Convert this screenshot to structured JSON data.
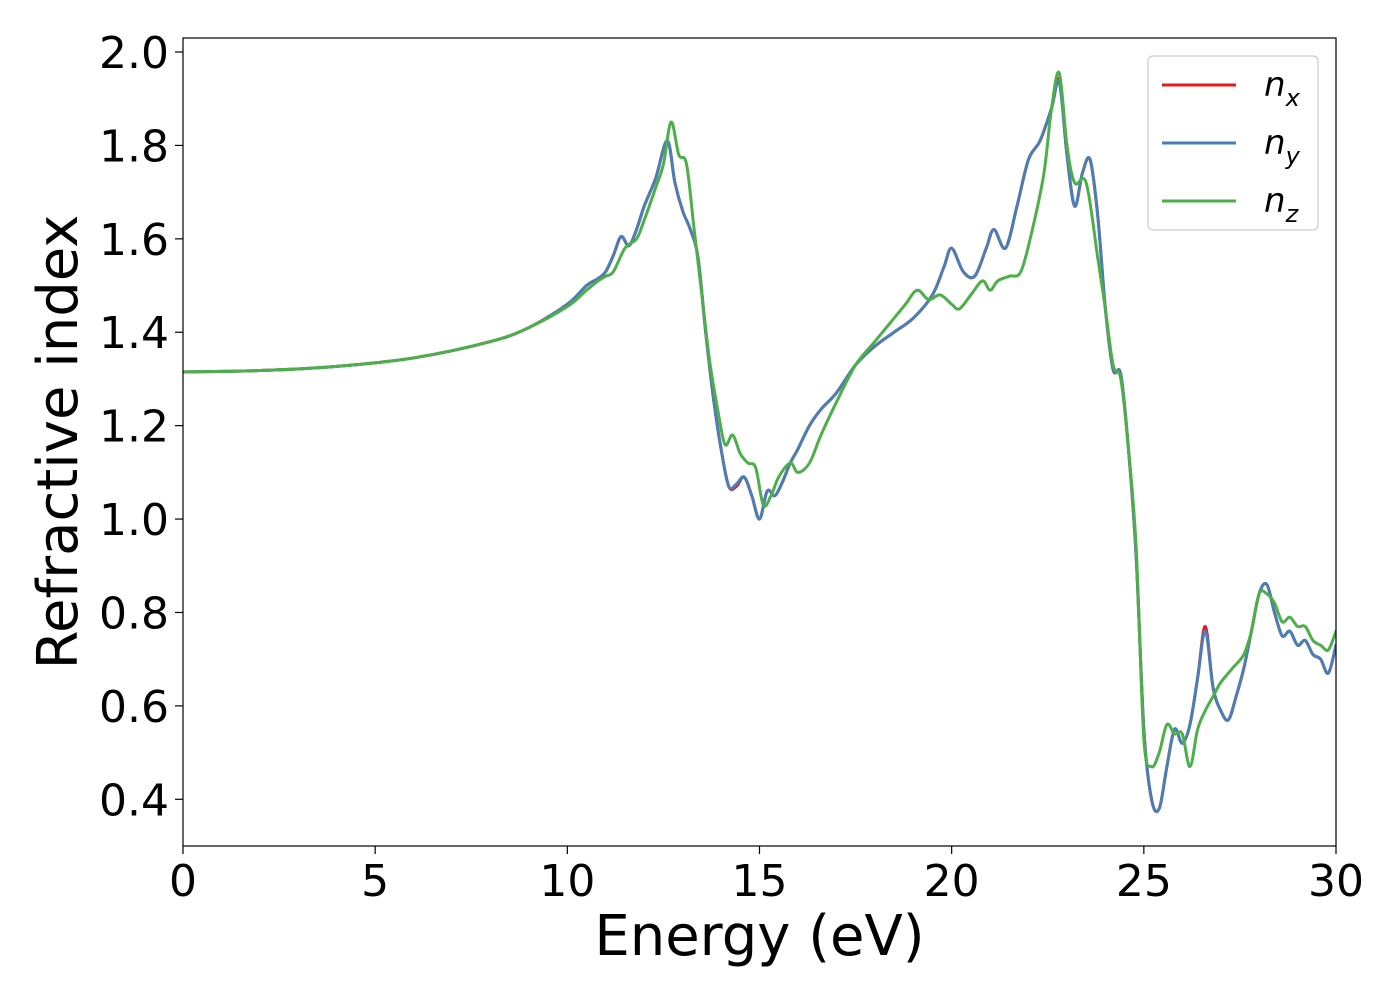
{
  "chart_data": {
    "type": "line",
    "xlabel": "Energy (eV)",
    "ylabel": "Refractive index",
    "xlim": [
      0,
      30
    ],
    "ylim": [
      0.3,
      2.03
    ],
    "x_ticks": [
      0,
      5,
      10,
      15,
      20,
      25,
      30
    ],
    "y_ticks": [
      0.4,
      0.6,
      0.8,
      1.0,
      1.2,
      1.4,
      1.6,
      1.8,
      2.0
    ],
    "y_tick_labels": [
      "0.4",
      "0.6",
      "0.8",
      "1.0",
      "1.2",
      "1.4",
      "1.6",
      "1.8",
      "2.0"
    ],
    "grid": false,
    "legend_position": "top-right",
    "series": [
      {
        "name": "n_x",
        "symbol": "n",
        "subscript": "x",
        "color": "#e41a1c",
        "x": [
          0,
          2,
          4,
          6,
          8,
          9,
          10,
          10.5,
          10.8,
          11.0,
          11.2,
          11.4,
          11.6,
          11.8,
          12.0,
          12.3,
          12.6,
          12.8,
          13.0,
          13.2,
          13.4,
          13.6,
          13.8,
          14.0,
          14.2,
          14.4,
          14.6,
          14.8,
          15.0,
          15.2,
          15.4,
          15.6,
          15.8,
          16.0,
          16.3,
          16.6,
          17.0,
          17.5,
          18.0,
          18.5,
          19.0,
          19.5,
          19.8,
          20.0,
          20.3,
          20.6,
          20.9,
          21.1,
          21.4,
          21.7,
          22.0,
          22.3,
          22.6,
          22.8,
          23.0,
          23.2,
          23.4,
          23.6,
          23.8,
          24.0,
          24.2,
          24.4,
          24.6,
          24.8,
          25.0,
          25.2,
          25.4,
          25.6,
          25.8,
          26.0,
          26.2,
          26.4,
          26.6,
          26.8,
          27.0,
          27.2,
          27.4,
          27.6,
          27.8,
          28.0,
          28.2,
          28.4,
          28.6,
          28.8,
          29.0,
          29.2,
          29.4,
          29.6,
          29.8,
          30.0
        ],
        "y": [
          1.315,
          1.318,
          1.327,
          1.345,
          1.38,
          1.41,
          1.46,
          1.5,
          1.515,
          1.53,
          1.565,
          1.605,
          1.585,
          1.62,
          1.67,
          1.73,
          1.81,
          1.72,
          1.66,
          1.62,
          1.56,
          1.4,
          1.26,
          1.15,
          1.07,
          1.07,
          1.09,
          1.05,
          1.0,
          1.06,
          1.05,
          1.08,
          1.12,
          1.15,
          1.2,
          1.235,
          1.27,
          1.33,
          1.37,
          1.4,
          1.43,
          1.48,
          1.54,
          1.58,
          1.53,
          1.52,
          1.58,
          1.62,
          1.58,
          1.67,
          1.77,
          1.81,
          1.88,
          1.94,
          1.78,
          1.67,
          1.74,
          1.77,
          1.65,
          1.45,
          1.32,
          1.31,
          1.15,
          0.92,
          0.55,
          0.4,
          0.38,
          0.47,
          0.55,
          0.52,
          0.56,
          0.66,
          0.77,
          0.64,
          0.59,
          0.57,
          0.62,
          0.68,
          0.76,
          0.84,
          0.86,
          0.8,
          0.75,
          0.76,
          0.73,
          0.74,
          0.71,
          0.7,
          0.67,
          0.73
        ]
      },
      {
        "name": "n_y",
        "symbol": "n",
        "subscript": "y",
        "color": "#4a7fb5",
        "x": [
          0,
          2,
          4,
          6,
          8,
          9,
          10,
          10.5,
          10.8,
          11.0,
          11.2,
          11.4,
          11.6,
          11.8,
          12.0,
          12.3,
          12.6,
          12.8,
          13.0,
          13.2,
          13.4,
          13.6,
          13.8,
          14.0,
          14.2,
          14.4,
          14.6,
          14.8,
          15.0,
          15.2,
          15.4,
          15.6,
          15.8,
          16.0,
          16.3,
          16.6,
          17.0,
          17.5,
          18.0,
          18.5,
          19.0,
          19.5,
          19.8,
          20.0,
          20.3,
          20.6,
          20.9,
          21.1,
          21.4,
          21.7,
          22.0,
          22.3,
          22.6,
          22.8,
          23.0,
          23.2,
          23.4,
          23.6,
          23.8,
          24.0,
          24.2,
          24.4,
          24.6,
          24.8,
          25.0,
          25.2,
          25.4,
          25.6,
          25.8,
          26.0,
          26.2,
          26.4,
          26.6,
          26.8,
          27.0,
          27.2,
          27.4,
          27.6,
          27.8,
          28.0,
          28.2,
          28.4,
          28.6,
          28.8,
          29.0,
          29.2,
          29.4,
          29.6,
          29.8,
          30.0
        ],
        "y": [
          1.315,
          1.318,
          1.327,
          1.345,
          1.38,
          1.41,
          1.46,
          1.5,
          1.515,
          1.53,
          1.565,
          1.605,
          1.585,
          1.62,
          1.67,
          1.73,
          1.81,
          1.72,
          1.66,
          1.62,
          1.56,
          1.4,
          1.26,
          1.15,
          1.07,
          1.075,
          1.09,
          1.05,
          1.0,
          1.06,
          1.05,
          1.08,
          1.12,
          1.15,
          1.2,
          1.235,
          1.27,
          1.33,
          1.37,
          1.4,
          1.43,
          1.48,
          1.54,
          1.58,
          1.53,
          1.52,
          1.58,
          1.62,
          1.58,
          1.67,
          1.77,
          1.81,
          1.88,
          1.935,
          1.78,
          1.67,
          1.74,
          1.77,
          1.65,
          1.45,
          1.32,
          1.31,
          1.15,
          0.92,
          0.55,
          0.4,
          0.38,
          0.47,
          0.55,
          0.52,
          0.56,
          0.66,
          0.76,
          0.64,
          0.59,
          0.57,
          0.62,
          0.68,
          0.76,
          0.84,
          0.86,
          0.8,
          0.75,
          0.76,
          0.73,
          0.74,
          0.71,
          0.7,
          0.67,
          0.73
        ]
      },
      {
        "name": "n_z",
        "symbol": "n",
        "subscript": "z",
        "color": "#4daf4a",
        "x": [
          0,
          2,
          4,
          6,
          8,
          9,
          10,
          10.5,
          10.8,
          11.0,
          11.2,
          11.5,
          11.8,
          12.0,
          12.3,
          12.5,
          12.7,
          12.9,
          13.1,
          13.3,
          13.5,
          13.7,
          13.9,
          14.1,
          14.3,
          14.5,
          14.7,
          14.9,
          15.1,
          15.3,
          15.5,
          15.8,
          16.0,
          16.3,
          16.6,
          17.0,
          17.5,
          18.0,
          18.5,
          18.8,
          19.1,
          19.4,
          19.7,
          20.0,
          20.2,
          20.5,
          20.8,
          21.0,
          21.2,
          21.5,
          21.8,
          22.1,
          22.4,
          22.6,
          22.8,
          23.0,
          23.2,
          23.5,
          23.8,
          24.0,
          24.2,
          24.4,
          24.6,
          24.8,
          25.0,
          25.2,
          25.4,
          25.6,
          25.8,
          26.0,
          26.2,
          26.4,
          26.6,
          26.8,
          27.0,
          27.3,
          27.6,
          27.8,
          28.0,
          28.2,
          28.4,
          28.6,
          28.8,
          29.0,
          29.2,
          29.4,
          29.6,
          29.8,
          30.0
        ],
        "y": [
          1.315,
          1.318,
          1.327,
          1.345,
          1.38,
          1.41,
          1.455,
          1.49,
          1.51,
          1.52,
          1.53,
          1.58,
          1.6,
          1.64,
          1.71,
          1.76,
          1.85,
          1.78,
          1.76,
          1.62,
          1.48,
          1.34,
          1.24,
          1.16,
          1.18,
          1.14,
          1.12,
          1.11,
          1.03,
          1.05,
          1.09,
          1.12,
          1.1,
          1.12,
          1.18,
          1.25,
          1.33,
          1.38,
          1.43,
          1.46,
          1.49,
          1.47,
          1.48,
          1.46,
          1.45,
          1.48,
          1.51,
          1.49,
          1.51,
          1.52,
          1.53,
          1.62,
          1.74,
          1.88,
          1.955,
          1.8,
          1.72,
          1.72,
          1.56,
          1.45,
          1.33,
          1.3,
          1.15,
          0.94,
          0.53,
          0.47,
          0.5,
          0.56,
          0.54,
          0.54,
          0.47,
          0.55,
          0.59,
          0.62,
          0.65,
          0.68,
          0.71,
          0.76,
          0.84,
          0.84,
          0.82,
          0.78,
          0.79,
          0.77,
          0.77,
          0.74,
          0.73,
          0.72,
          0.76
        ]
      }
    ]
  }
}
